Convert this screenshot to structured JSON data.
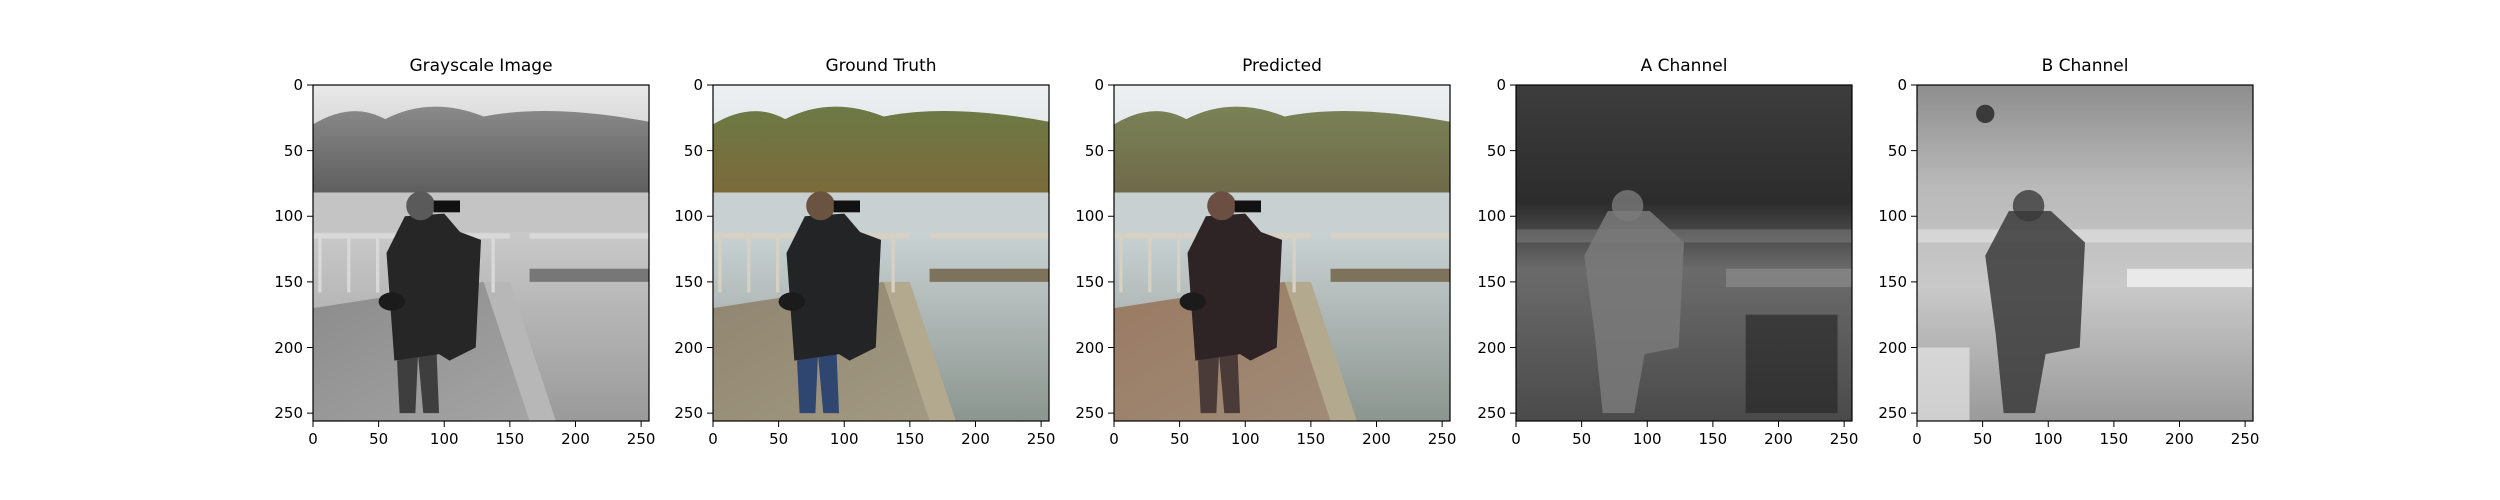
{
  "figure": {
    "panels": [
      {
        "title": "Grayscale Image",
        "image": "grayscale-photo",
        "tone": "gray"
      },
      {
        "title": "Ground Truth",
        "image": "ground-truth-color-photo",
        "tone": "color"
      },
      {
        "title": "Predicted",
        "image": "predicted-color-photo",
        "tone": "color-predicted"
      },
      {
        "title": "A Channel",
        "image": "a-channel-map",
        "tone": "dark-channel"
      },
      {
        "title": "B Channel",
        "image": "b-channel-map",
        "tone": "light-channel"
      }
    ]
  },
  "chart_data": {
    "type": "image-grid",
    "panels": [
      {
        "title": "Grayscale Image"
      },
      {
        "title": "Ground Truth"
      },
      {
        "title": "Predicted"
      },
      {
        "title": "A Channel"
      },
      {
        "title": "B Channel"
      }
    ],
    "xlim": [
      0,
      256
    ],
    "ylim": [
      256,
      0
    ],
    "xticks": [
      0,
      50,
      100,
      150,
      200,
      250
    ],
    "yticks": [
      0,
      50,
      100,
      150,
      200,
      250
    ],
    "xtick_labels": [
      "0",
      "50",
      "100",
      "150",
      "200",
      "250"
    ],
    "ytick_labels": [
      "0",
      "50",
      "100",
      "150",
      "200",
      "250"
    ],
    "grid": false
  }
}
